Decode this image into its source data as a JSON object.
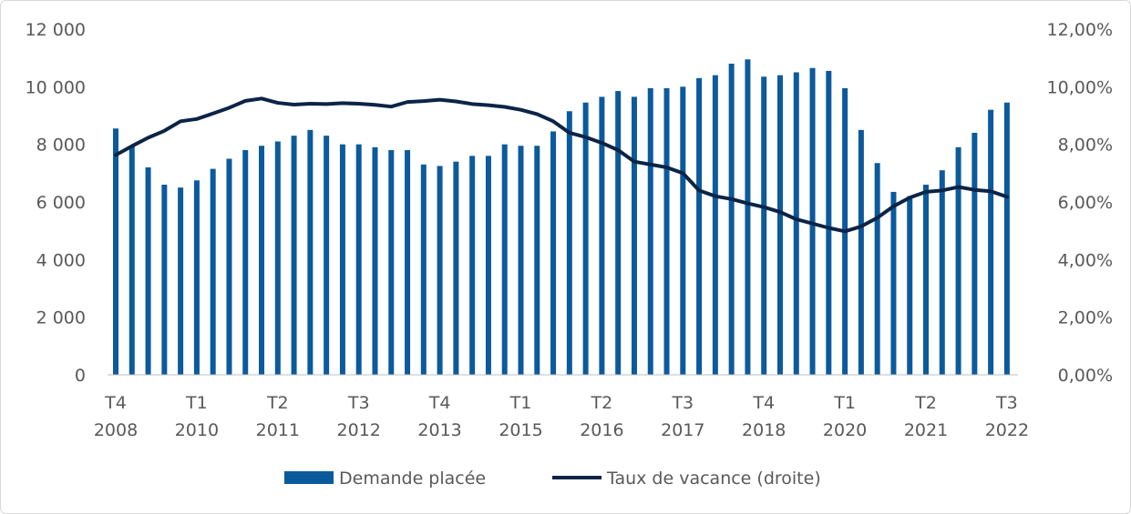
{
  "chart_data": {
    "type": "bar",
    "title": "",
    "xlabel": "",
    "ylabel": "",
    "ylim": [
      0,
      12000
    ],
    "y_ticks": [
      "0",
      "2 000",
      "4 000",
      "6 000",
      "8 000",
      "10 000",
      "12 000"
    ],
    "y2lim": [
      0,
      0.12
    ],
    "y2_ticks": [
      "0,00%",
      "2,00%",
      "4,00%",
      "6,00%",
      "8,00%",
      "10,00%",
      "12,00%"
    ],
    "grid": false,
    "legend_position": "bottom",
    "x_tick_labels": [
      {
        "index": 0,
        "quarter": "T4",
        "year": "2008"
      },
      {
        "index": 5,
        "quarter": "T1",
        "year": "2010"
      },
      {
        "index": 10,
        "quarter": "T2",
        "year": "2011"
      },
      {
        "index": 15,
        "quarter": "T3",
        "year": "2012"
      },
      {
        "index": 20,
        "quarter": "T4",
        "year": "2013"
      },
      {
        "index": 25,
        "quarter": "T1",
        "year": "2015"
      },
      {
        "index": 30,
        "quarter": "T2",
        "year": "2016"
      },
      {
        "index": 35,
        "quarter": "T3",
        "year": "2017"
      },
      {
        "index": 40,
        "quarter": "T4",
        "year": "2018"
      },
      {
        "index": 45,
        "quarter": "T1",
        "year": "2020"
      },
      {
        "index": 50,
        "quarter": "T2",
        "year": "2021"
      },
      {
        "index": 55,
        "quarter": "T3",
        "year": "2022"
      }
    ],
    "categories": [
      "T4 2008",
      "T1 2009",
      "T2 2009",
      "T3 2009",
      "T4 2009",
      "T1 2010",
      "T2 2010",
      "T3 2010",
      "T4 2010",
      "T1 2011",
      "T2 2011",
      "T3 2011",
      "T4 2011",
      "T1 2012",
      "T2 2012",
      "T3 2012",
      "T4 2012",
      "T1 2013",
      "T2 2013",
      "T3 2013",
      "T4 2013",
      "T1 2014",
      "T2 2014",
      "T3 2014",
      "T4 2014",
      "T1 2015",
      "T2 2015",
      "T3 2015",
      "T4 2015",
      "T1 2016",
      "T2 2016",
      "T3 2016",
      "T4 2016",
      "T1 2017",
      "T2 2017",
      "T3 2017",
      "T4 2017",
      "T1 2018",
      "T2 2018",
      "T3 2018",
      "T4 2018",
      "T1 2019",
      "T2 2019",
      "T3 2019",
      "T4 2019",
      "T1 2020",
      "T2 2020",
      "T3 2020",
      "T4 2020",
      "T1 2021",
      "T2 2021",
      "T3 2021",
      "T4 2021",
      "T1 2022",
      "T2 2022",
      "T3 2022"
    ],
    "series": [
      {
        "name": "Demande placée",
        "type": "bar",
        "axis": "left",
        "color": "#0B5A9C",
        "values": [
          8550,
          7950,
          7200,
          6600,
          6500,
          6750,
          7150,
          7500,
          7800,
          7950,
          8100,
          8300,
          8500,
          8300,
          8000,
          8000,
          7900,
          7800,
          7800,
          7300,
          7250,
          7400,
          7600,
          7600,
          8000,
          7950,
          7950,
          8450,
          9150,
          9450,
          9650,
          9850,
          9650,
          9950,
          9950,
          10000,
          10300,
          10400,
          10800,
          10950,
          10350,
          10400,
          10500,
          10650,
          10550,
          9950,
          8500,
          7350,
          6350,
          6200,
          6600,
          7100,
          7900,
          8400,
          9200,
          9450
        ]
      },
      {
        "name": "Taux de vacance (droite)",
        "type": "line",
        "axis": "right",
        "color": "#0B2447",
        "values": [
          0.0763,
          0.0794,
          0.0823,
          0.0847,
          0.088,
          0.0888,
          0.0907,
          0.0927,
          0.0951,
          0.0959,
          0.0944,
          0.0938,
          0.0941,
          0.094,
          0.0943,
          0.0941,
          0.0937,
          0.0931,
          0.0947,
          0.095,
          0.0955,
          0.0949,
          0.094,
          0.0936,
          0.093,
          0.092,
          0.0905,
          0.088,
          0.084,
          0.0825,
          0.0805,
          0.078,
          0.074,
          0.073,
          0.072,
          0.07,
          0.064,
          0.062,
          0.061,
          0.0595,
          0.0582,
          0.0565,
          0.054,
          0.0525,
          0.051,
          0.0498,
          0.0515,
          0.0545,
          0.0585,
          0.0615,
          0.0635,
          0.064,
          0.0652,
          0.0642,
          0.0637,
          0.0618
        ]
      }
    ]
  }
}
